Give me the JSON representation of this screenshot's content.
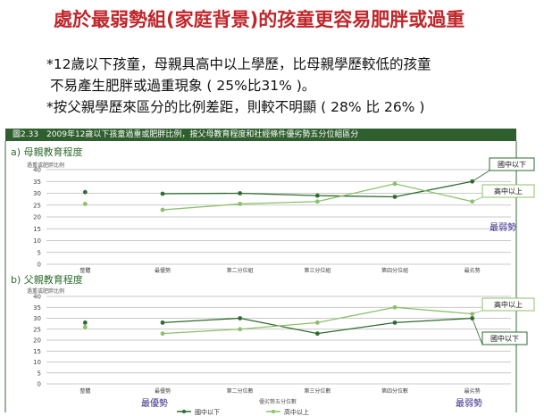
{
  "slide": {
    "title": "處於最弱勢組(家庭背景)的孩童更容易肥胖或過重",
    "bullet1_line1": "*12歲以下孩童，母親具高中以上學歷，比母親學歷較低的孩童",
    "bullet1_line2": "不易產生肥胖或過重現象 ( 25%比31% )。",
    "bullet2": "*按父親學歷來區分的比例差距，則較不明顯 ( 28% 比 26% )"
  },
  "figure": {
    "header": "圖2.33　2009年12歲以下孩童過重或肥胖比例，按父母教育程度和社經條件優劣勢五分位組區分",
    "weak_label": "最弱勢",
    "strong_label": "最優勢",
    "bottom_axis_title": "優劣勢五分位數"
  },
  "colors": {
    "dark_series": "#2e6b2e",
    "light_series": "#8cc06a",
    "title_red": "#c0262b",
    "annot_purple": "#3a2a8a"
  },
  "chart_data": [
    {
      "type": "line",
      "title": "a) 母親教育程度",
      "ylabel": "過重或肥胖比例",
      "ylim": [
        0,
        40
      ],
      "yticks": [
        0,
        5,
        10,
        15,
        20,
        25,
        30,
        35,
        40
      ],
      "categories": [
        "整體",
        "最優勢",
        "第二分位組",
        "第三分位組",
        "第四分位組",
        "最劣勢"
      ],
      "series": [
        {
          "name": "國中以下",
          "values": [
            30.5,
            29.8,
            30.0,
            29.0,
            28.5,
            35.0
          ]
        },
        {
          "name": "高中以上",
          "values": [
            25.5,
            23.0,
            25.5,
            26.5,
            34.0,
            26.5
          ]
        }
      ],
      "callouts": [
        "國中以下",
        "高中以上"
      ]
    },
    {
      "type": "line",
      "title": "b) 父親教育程度",
      "ylabel": "過重或肥胖比例",
      "ylim": [
        0,
        40
      ],
      "yticks": [
        0,
        5,
        10,
        15,
        20,
        25,
        30,
        35,
        40
      ],
      "categories": [
        "整體",
        "最優勢",
        "第二分位數",
        "第三分位數",
        "第四分位數",
        "最劣勢"
      ],
      "series": [
        {
          "name": "國中以下",
          "values": [
            28.0,
            28.0,
            30.0,
            23.0,
            28.0,
            30.0
          ]
        },
        {
          "name": "高中以上",
          "values": [
            26.0,
            23.0,
            25.0,
            28.0,
            35.0,
            32.0
          ]
        }
      ],
      "callouts": [
        "高中以上",
        "國中以下"
      ],
      "legend": [
        "國中以下",
        "高中以上"
      ]
    }
  ]
}
